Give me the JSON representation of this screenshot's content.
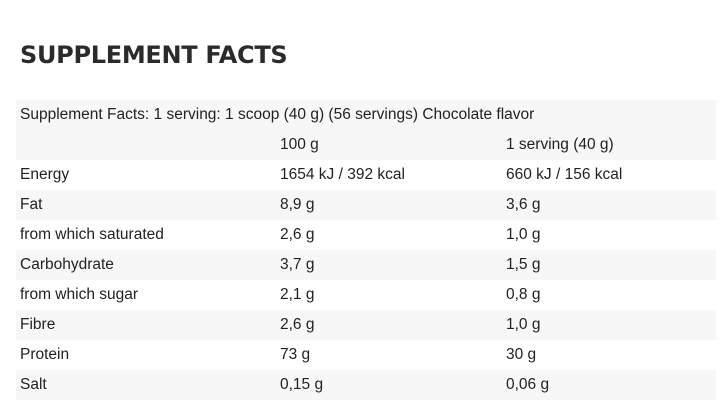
{
  "heading": "SUPPLEMENT FACTS",
  "caption": "Supplement Facts: 1 serving: 1 scoop (40 g) (56 servings) Chocolate flavor",
  "columns": [
    "",
    "100 g",
    "1 serving (40 g)"
  ],
  "rows": [
    {
      "name": "Energy",
      "per100": "1654 kJ / 392 kcal",
      "serving": "660 kJ / 156 kcal"
    },
    {
      "name": "Fat",
      "per100": "8,9 g",
      "serving": "3,6 g"
    },
    {
      "name": "from which saturated",
      "per100": "2,6 g",
      "serving": "1,0 g"
    },
    {
      "name": "Carbohydrate",
      "per100": "3,7 g",
      "serving": "1,5 g"
    },
    {
      "name": "from which sugar",
      "per100": "2,1 g",
      "serving": "0,8 g"
    },
    {
      "name": "Fibre",
      "per100": "2,6 g",
      "serving": "1,0 g"
    },
    {
      "name": "Protein",
      "per100": "73 g",
      "serving": "30 g"
    },
    {
      "name": "Salt",
      "per100": "0,15 g",
      "serving": "0,06 g"
    }
  ]
}
